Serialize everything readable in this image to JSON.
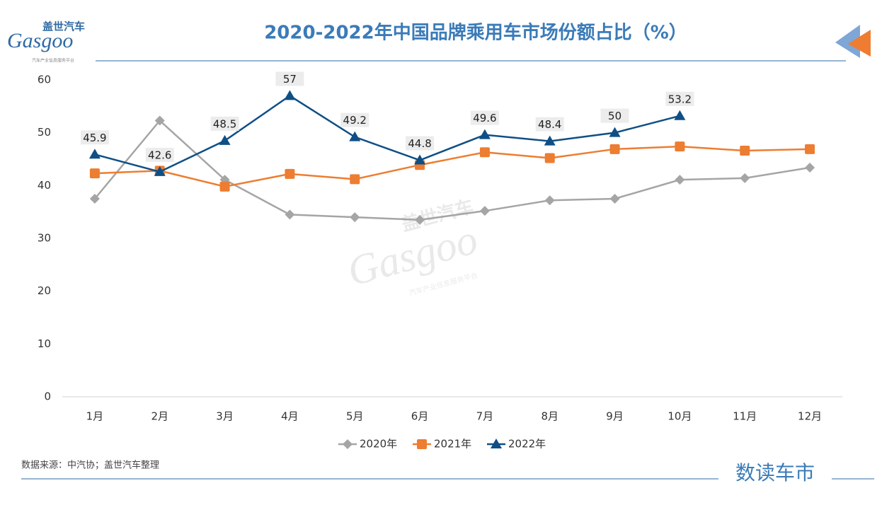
{
  "logo": {
    "cn": "盖世汽车",
    "en": "Gasgoo",
    "tagline": "汽车产业信息服务平台"
  },
  "source": "数据来源：中汽协；盖世汽车整理",
  "footer_brand": "数读车市",
  "chart_data": {
    "type": "line",
    "title": "2020-2022年中国品牌乘用车市场份额占比（%）",
    "categories": [
      "1月",
      "2月",
      "3月",
      "4月",
      "5月",
      "6月",
      "7月",
      "8月",
      "9月",
      "10月",
      "11月",
      "12月"
    ],
    "series": [
      {
        "name": "2020年",
        "color": "#a5a5a5",
        "marker": "diamond",
        "values": [
          37.5,
          52.3,
          41.1,
          34.5,
          34.0,
          33.5,
          35.2,
          37.2,
          37.5,
          41.1,
          41.4,
          43.4
        ]
      },
      {
        "name": "2021年",
        "color": "#ed7d31",
        "marker": "square",
        "values": [
          42.3,
          42.8,
          39.8,
          42.2,
          41.2,
          43.9,
          46.3,
          45.2,
          46.9,
          47.4,
          46.6,
          46.9
        ]
      },
      {
        "name": "2022年",
        "color": "#0f4f85",
        "marker": "triangle",
        "data_labels": true,
        "values": [
          45.9,
          42.6,
          48.5,
          57,
          49.2,
          44.8,
          49.6,
          48.4,
          50,
          53.2,
          null,
          null
        ]
      }
    ],
    "ylim": [
      0,
      60
    ],
    "yticks": [
      0,
      10,
      20,
      30,
      40,
      50,
      60
    ],
    "grid": false,
    "legend": "bottom"
  }
}
